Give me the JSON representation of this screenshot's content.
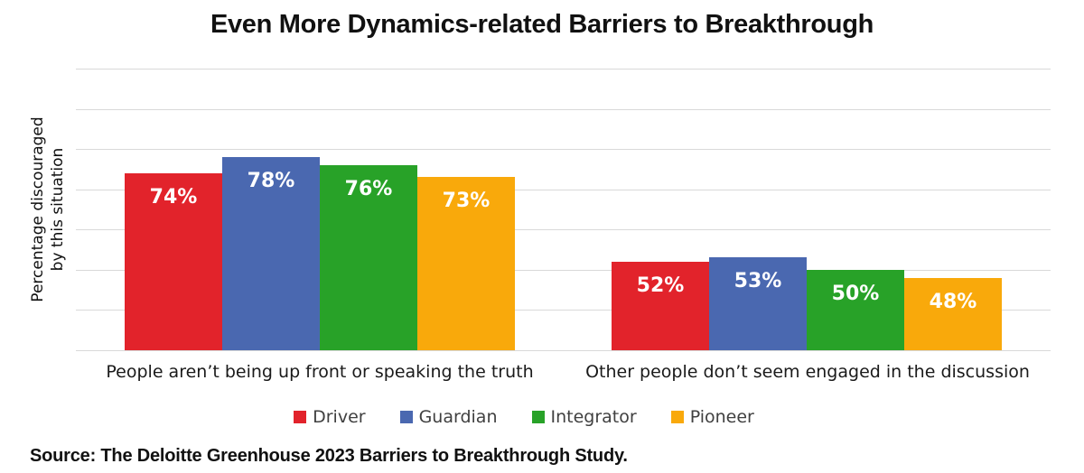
{
  "title": "Even More Dynamics-related Barriers to Breakthrough",
  "source_note": "Source: The Deloitte Greenhouse 2023 Barriers to Breakthrough Study.",
  "chart_data": {
    "type": "bar",
    "title": "Even More Dynamics-related Barriers to Breakthrough",
    "ylabel": "Percentage discouraged by this situation",
    "ylabel_lines": [
      "Percentage discouraged",
      "by this situation"
    ],
    "categories": [
      "People aren’t being up front or speaking the truth",
      "Other people don’t seem engaged in the discussion"
    ],
    "series": [
      {
        "name": "Driver",
        "color": "#e2232b",
        "values": [
          74,
          52
        ]
      },
      {
        "name": "Guardian",
        "color": "#4a68b0",
        "values": [
          78,
          53
        ]
      },
      {
        "name": "Integrator",
        "color": "#28a228",
        "values": [
          76,
          50
        ]
      },
      {
        "name": "Pioneer",
        "color": "#f9a90b",
        "values": [
          73,
          48
        ]
      }
    ],
    "value_suffix": "%",
    "data_labels": "inside-end",
    "data_label_color": "#ffffff",
    "ylim": [
      30,
      100
    ],
    "gridline_step": 10,
    "grid": true,
    "gridline_color": "#d9d9d9",
    "legend_position": "bottom",
    "legend_text_color": "#404040"
  }
}
